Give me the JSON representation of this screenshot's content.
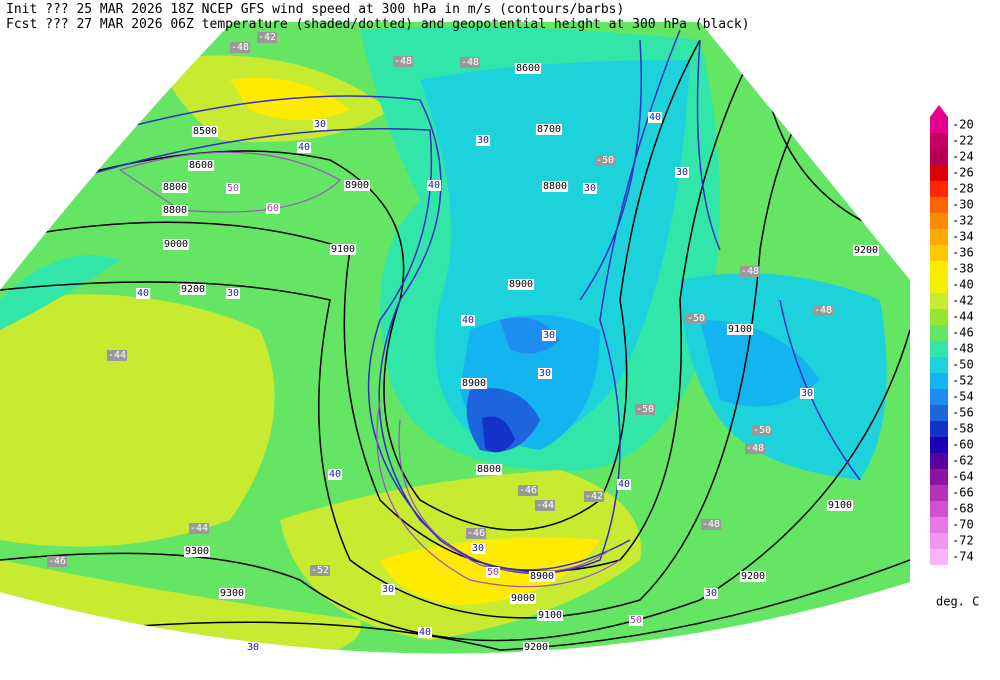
{
  "header": {
    "line1": "Init  ??? 25 MAR 2026 18Z  NCEP GFS wind speed at 300 hPa in m/s (contours/barbs)",
    "line2": "Fcst ??? 27 MAR 2026 06Z  temperature (shaded/dotted) and geopotential height at 300 hPa (black)"
  },
  "colorbar": {
    "levels": [
      -20,
      -22,
      -24,
      -26,
      -28,
      -30,
      -32,
      -34,
      -36,
      -38,
      -40,
      -42,
      -44,
      -46,
      -48,
      -50,
      -52,
      -54,
      -56,
      -58,
      -60,
      -62,
      -64,
      -66,
      -68,
      -70,
      -72,
      -74
    ],
    "colors": [
      "#e6008c",
      "#c80064",
      "#b40050",
      "#dc0000",
      "#ff2800",
      "#ff6400",
      "#ff8c00",
      "#ffaa00",
      "#ffc800",
      "#ffeb00",
      "#f0f000",
      "#c8eb32",
      "#96e632",
      "#64e664",
      "#32e6aa",
      "#1ed2dc",
      "#14b4f0",
      "#1e8cf0",
      "#1e64dc",
      "#1432c8",
      "#1e00b4",
      "#5a00a0",
      "#8c14a0",
      "#b432b4",
      "#d250d2",
      "#e678e6",
      "#f096f0",
      "#fab4fa"
    ],
    "unit": "deg. C"
  },
  "map_labels": [
    "-42",
    "-48",
    "-48",
    "-48",
    "8600",
    "8500",
    "40",
    "30",
    "8600",
    "-50",
    "8800",
    "50",
    "8900",
    "8800",
    "8700",
    "40",
    "30",
    "30",
    "30",
    "8800",
    "60",
    "40",
    "9000",
    "9100",
    "9200",
    "-48",
    "8900",
    "9200",
    "30",
    "40",
    "-48",
    "9100",
    "-50",
    "40",
    "30",
    "-44",
    "8900",
    "30",
    "-50",
    "30",
    "-50",
    "-48",
    "8800",
    "40",
    "40",
    "-46",
    "-44",
    "-42",
    "9100",
    "-44",
    "-46",
    "-48",
    "30",
    "9300",
    "-46",
    "-52",
    "9200",
    "8900",
    "9300",
    "30",
    "9000",
    "9100",
    "30",
    "40",
    "50",
    "9200",
    "30",
    "50"
  ]
}
